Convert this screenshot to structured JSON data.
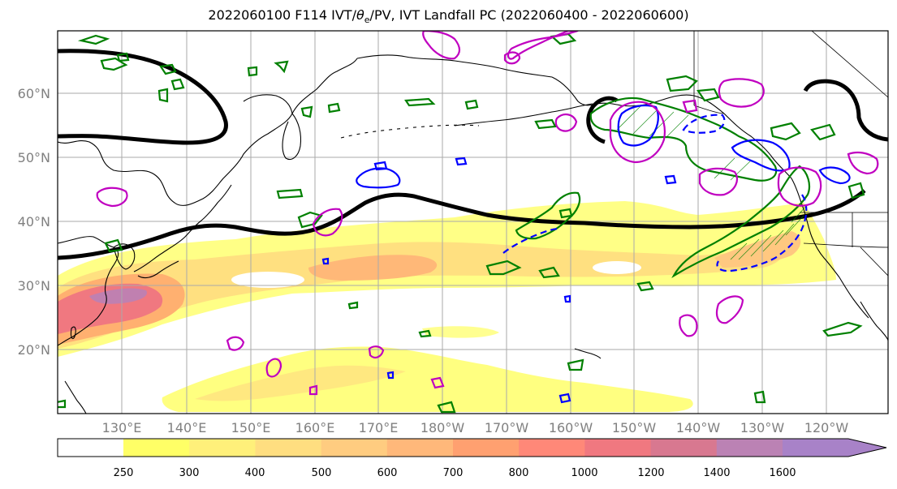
{
  "title": {
    "run": "2022060100",
    "forecast_hour": "F114",
    "fields_prefix": "IVT/",
    "theta_symbol": "θ",
    "theta_sub": "e",
    "fields_suffix": "/PV, IVT Landfall PC (2022060400 - 2022060600)"
  },
  "lat_labels": [
    "60°N",
    "50°N",
    "40°N",
    "30°N",
    "20°N"
  ],
  "lon_labels": [
    "130°E",
    "140°E",
    "150°E",
    "160°E",
    "170°E",
    "180°W",
    "170°W",
    "160°W",
    "150°W",
    "140°W",
    "130°W",
    "120°W"
  ],
  "colorbar": {
    "levels": [
      "250",
      "300",
      "400",
      "500",
      "600",
      "700",
      "800",
      "1000",
      "1200",
      "1400",
      "1600"
    ],
    "colors": [
      "#ffff66",
      "#fff07a",
      "#ffde80",
      "#ffcc80",
      "#ffb87a",
      "#ffa070",
      "#ff8878",
      "#f07880",
      "#d87890",
      "#bb82b4",
      "#a882c8"
    ],
    "extend": "max"
  },
  "contour_colors": {
    "theta_e": "#000000",
    "pv_green": "#008000",
    "pv_blue": "#0000ff",
    "magenta": "#c000c0",
    "coast": "#000000"
  },
  "map_extent": {
    "lon_min_east": 120,
    "lon_max_west": 113,
    "lat_min": 10,
    "lat_max": 70
  }
}
